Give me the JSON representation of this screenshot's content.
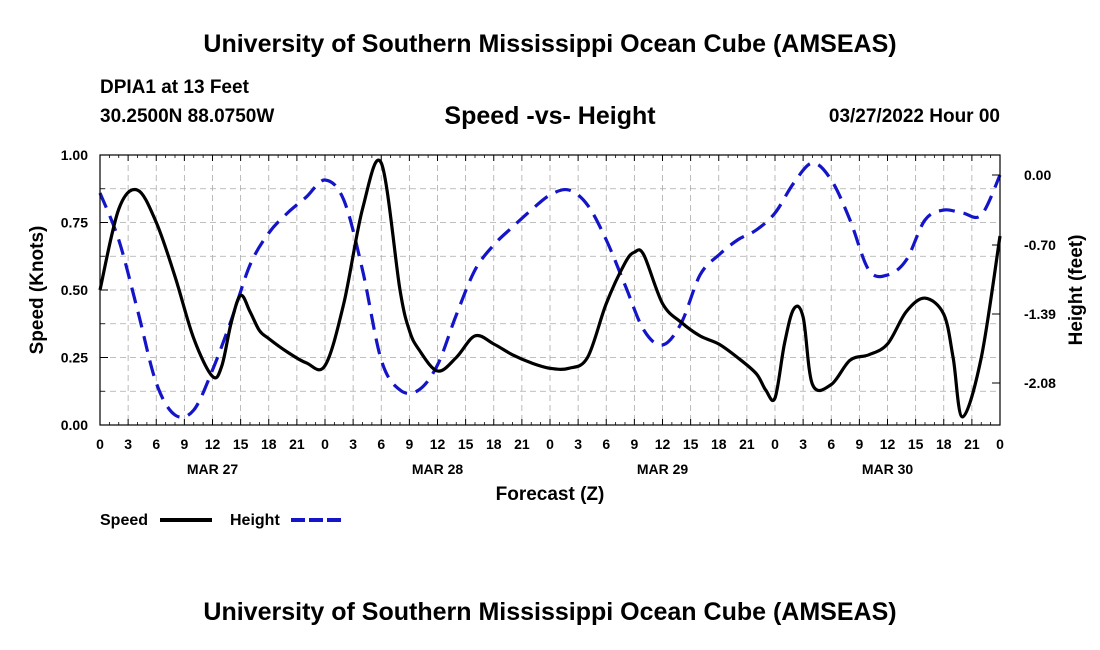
{
  "header": {
    "title": "University of Southern Mississippi Ocean Cube (AMSEAS)",
    "station": "DPIA1 at 13 Feet",
    "coords": "30.2500N  88.0750W",
    "subtitle": "Speed -vs- Height",
    "datetime": "03/27/2022 Hour 00"
  },
  "footer": {
    "title": "University of Southern Mississippi Ocean Cube (AMSEAS)"
  },
  "chart_data": {
    "type": "line",
    "title": "Speed -vs- Height",
    "xlabel": "Forecast (Z)",
    "ylabel": "Speed (Knots)",
    "y2label": "Height (feet)",
    "xlim": [
      0,
      96
    ],
    "ylim": [
      0,
      1
    ],
    "y2lim": [
      -2.5,
      0.2
    ],
    "grid": true,
    "x_tick_labels": [
      "0",
      "3",
      "6",
      "9",
      "12",
      "15",
      "18",
      "21",
      "0",
      "3",
      "6",
      "9",
      "12",
      "15",
      "18",
      "21",
      "0",
      "3",
      "6",
      "9",
      "12",
      "15",
      "18",
      "21",
      "0",
      "3",
      "6",
      "9",
      "12",
      "15",
      "18",
      "21",
      "0"
    ],
    "date_labels": [
      {
        "label": "MAR 27",
        "hour": 12
      },
      {
        "label": "MAR 28",
        "hour": 36
      },
      {
        "label": "MAR 29",
        "hour": 60
      },
      {
        "label": "MAR 30",
        "hour": 84
      }
    ],
    "y_ticks": [
      "0.00",
      "0.25",
      "0.50",
      "0.75",
      "1.00"
    ],
    "y2_ticks": [
      "0.00",
      "-0.70",
      "-1.39",
      "-2.08"
    ],
    "colors": {
      "speed": "#000000",
      "height": "#1414c8"
    },
    "series": [
      {
        "name": "Speed",
        "axis": "left",
        "style": "solid",
        "x": [
          0,
          2,
          4,
          6,
          8,
          10,
          12,
          13,
          14,
          15,
          16,
          17,
          18,
          20,
          22,
          24,
          26,
          28,
          30,
          32,
          33,
          34,
          36,
          38,
          40,
          42,
          44,
          46,
          48,
          50,
          52,
          54,
          56,
          57,
          58,
          60,
          62,
          64,
          66,
          68,
          70,
          71,
          72,
          73,
          74,
          75,
          76,
          78,
          80,
          82,
          84,
          86,
          88,
          90,
          91,
          92,
          94,
          96
        ],
        "y": [
          0.5,
          0.8,
          0.87,
          0.75,
          0.55,
          0.32,
          0.18,
          0.22,
          0.38,
          0.48,
          0.42,
          0.35,
          0.32,
          0.27,
          0.23,
          0.22,
          0.45,
          0.8,
          0.97,
          0.5,
          0.35,
          0.28,
          0.2,
          0.25,
          0.33,
          0.3,
          0.26,
          0.23,
          0.21,
          0.21,
          0.25,
          0.45,
          0.6,
          0.64,
          0.63,
          0.45,
          0.38,
          0.33,
          0.3,
          0.25,
          0.19,
          0.13,
          0.1,
          0.3,
          0.43,
          0.4,
          0.15,
          0.15,
          0.24,
          0.26,
          0.3,
          0.42,
          0.47,
          0.41,
          0.25,
          0.03,
          0.25,
          0.7
        ]
      },
      {
        "name": "Height",
        "axis": "right",
        "style": "dashed",
        "x": [
          0,
          2,
          4,
          6,
          8,
          10,
          12,
          14,
          16,
          18,
          20,
          22,
          24,
          26,
          28,
          30,
          32,
          34,
          36,
          38,
          40,
          42,
          44,
          46,
          48,
          50,
          52,
          54,
          56,
          58,
          60,
          62,
          64,
          66,
          68,
          70,
          72,
          74,
          76,
          78,
          80,
          82,
          84,
          86,
          88,
          90,
          92,
          94,
          96
        ],
        "y": [
          -0.18,
          -0.65,
          -1.35,
          -2.08,
          -2.4,
          -2.35,
          -1.95,
          -1.45,
          -0.9,
          -0.58,
          -0.38,
          -0.22,
          -0.05,
          -0.25,
          -0.95,
          -1.85,
          -2.15,
          -2.15,
          -1.9,
          -1.4,
          -0.95,
          -0.7,
          -0.52,
          -0.35,
          -0.2,
          -0.15,
          -0.3,
          -0.65,
          -1.1,
          -1.55,
          -1.7,
          -1.48,
          -1.0,
          -0.8,
          -0.65,
          -0.55,
          -0.38,
          -0.08,
          0.12,
          -0.05,
          -0.45,
          -0.95,
          -1.0,
          -0.85,
          -0.45,
          -0.35,
          -0.38,
          -0.4,
          0.0
        ]
      }
    ],
    "legend": [
      {
        "label": "Speed",
        "series": "Speed"
      },
      {
        "label": "Height",
        "series": "Height"
      }
    ]
  }
}
